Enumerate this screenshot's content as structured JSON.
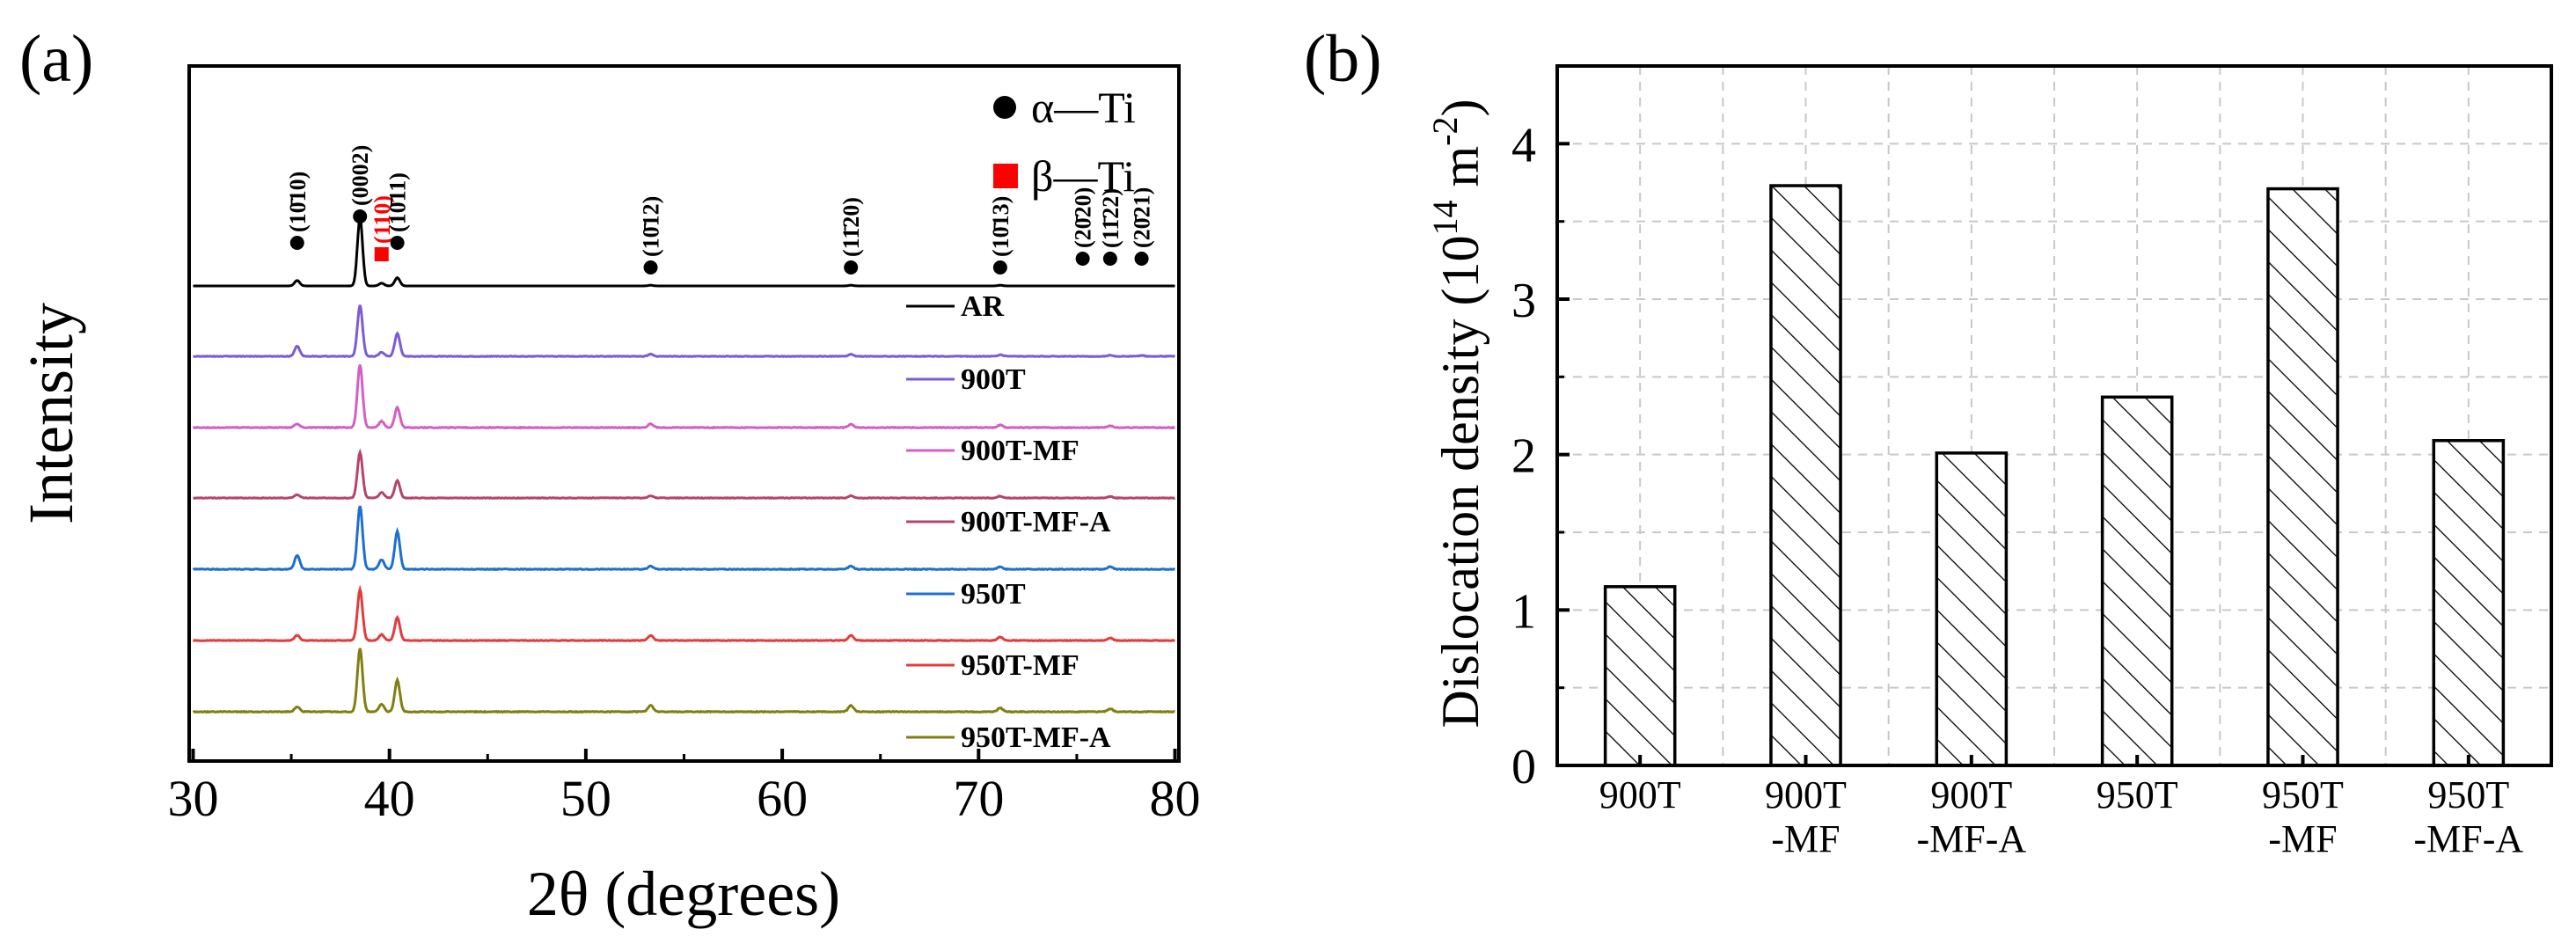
{
  "figure": {
    "panel_a_label": "(a)",
    "panel_b_label": "(b)"
  },
  "colors": {
    "axis": "#000000",
    "grid": "#c8c8c8",
    "marker_alpha": "#000000",
    "marker_beta": "#ff0000",
    "beta_label": "#ff0000"
  },
  "chart_data": [
    {
      "panel": "(a)",
      "type": "line",
      "title": "",
      "xlabel": "2θ (degrees)",
      "ylabel": "Intensity",
      "xlim": [
        29.8,
        80.2
      ],
      "xticks": [
        30,
        40,
        50,
        60,
        70,
        80
      ],
      "phase_legend": [
        {
          "symbol": "circle",
          "label": "α—Ti",
          "color": "#000000"
        },
        {
          "symbol": "square",
          "label": "β—Ti",
          "color": "#ff0000"
        }
      ],
      "reflections": [
        {
          "phase": "alpha",
          "label": "(10̄10)",
          "two_theta": 35.3
        },
        {
          "phase": "alpha",
          "label": "(0002)",
          "two_theta": 38.5
        },
        {
          "phase": "beta",
          "label": "(110)",
          "two_theta": 39.6
        },
        {
          "phase": "alpha",
          "label": "(10̄11)",
          "two_theta": 40.4
        },
        {
          "phase": "alpha",
          "label": "(10̄12)",
          "two_theta": 53.3
        },
        {
          "phase": "alpha",
          "label": "(11̄20)",
          "two_theta": 63.5
        },
        {
          "phase": "alpha",
          "label": "(10̄13)",
          "two_theta": 71.1
        },
        {
          "phase": "alpha",
          "label": "(20̄20)",
          "two_theta": 75.3
        },
        {
          "phase": "alpha",
          "label": "(11̄22)",
          "two_theta": 76.7
        },
        {
          "phase": "alpha",
          "label": "(20̄21)",
          "two_theta": 78.3
        }
      ],
      "series": [
        {
          "name": "AR",
          "color": "#000000",
          "peaks": [
            [
              35.3,
              0.08
            ],
            [
              38.5,
              1.0
            ],
            [
              39.6,
              0.04
            ],
            [
              40.4,
              0.12
            ],
            [
              53.3,
              0.01
            ],
            [
              63.5,
              0.01
            ],
            [
              71.1,
              0.01
            ]
          ]
        },
        {
          "name": "900T",
          "color": "#7b5cd6",
          "peaks": [
            [
              35.3,
              0.2
            ],
            [
              38.5,
              1.0
            ],
            [
              39.6,
              0.08
            ],
            [
              40.4,
              0.45
            ],
            [
              53.3,
              0.04
            ],
            [
              63.5,
              0.04
            ],
            [
              71.1,
              0.03
            ],
            [
              76.7,
              0.02
            ],
            [
              78.3,
              0.02
            ]
          ]
        },
        {
          "name": "900T-MF",
          "color": "#d45fc4",
          "peaks": [
            [
              35.3,
              0.06
            ],
            [
              38.5,
              1.0
            ],
            [
              39.6,
              0.1
            ],
            [
              40.4,
              0.32
            ],
            [
              53.3,
              0.06
            ],
            [
              63.5,
              0.05
            ],
            [
              71.1,
              0.04
            ],
            [
              76.7,
              0.03
            ]
          ]
        },
        {
          "name": "900T-MF-A",
          "color": "#b5456a",
          "peaks": [
            [
              35.3,
              0.07
            ],
            [
              38.5,
              1.0
            ],
            [
              39.6,
              0.12
            ],
            [
              40.4,
              0.38
            ],
            [
              53.3,
              0.05
            ],
            [
              63.5,
              0.05
            ],
            [
              71.1,
              0.04
            ],
            [
              76.7,
              0.03
            ]
          ]
        },
        {
          "name": "950T",
          "color": "#1d6fd1",
          "peaks": [
            [
              35.3,
              0.22
            ],
            [
              38.5,
              1.0
            ],
            [
              39.6,
              0.15
            ],
            [
              40.4,
              0.6
            ],
            [
              53.3,
              0.05
            ],
            [
              63.5,
              0.05
            ],
            [
              71.1,
              0.04
            ],
            [
              76.7,
              0.04
            ]
          ]
        },
        {
          "name": "950T-MF",
          "color": "#e23c3c",
          "peaks": [
            [
              35.3,
              0.1
            ],
            [
              38.5,
              1.0
            ],
            [
              39.6,
              0.12
            ],
            [
              40.4,
              0.45
            ],
            [
              53.3,
              0.1
            ],
            [
              63.5,
              0.1
            ],
            [
              71.1,
              0.07
            ],
            [
              76.7,
              0.05
            ]
          ]
        },
        {
          "name": "950T-MF-A",
          "color": "#7f7f12",
          "peaks": [
            [
              35.3,
              0.08
            ],
            [
              38.5,
              1.0
            ],
            [
              39.6,
              0.12
            ],
            [
              40.4,
              0.5
            ],
            [
              53.3,
              0.1
            ],
            [
              63.5,
              0.1
            ],
            [
              71.1,
              0.06
            ],
            [
              76.7,
              0.05
            ]
          ]
        }
      ],
      "legend_position": "right"
    },
    {
      "panel": "(b)",
      "type": "bar",
      "title": "",
      "xlabel": "",
      "ylabel": "Dislocation density (10",
      "ylabel_sup1": "14",
      "ylabel_mid": " m",
      "ylabel_sup2": "-2",
      "ylabel_end": ")",
      "ylim": [
        0,
        4.5
      ],
      "yticks": [
        0,
        1,
        2,
        3,
        4
      ],
      "grid": true,
      "categories": [
        [
          "900T"
        ],
        [
          "900T",
          "-MF"
        ],
        [
          "900T",
          "-MF-A"
        ],
        [
          "950T"
        ],
        [
          "950T",
          "-MF"
        ],
        [
          "950T",
          "-MF-A"
        ]
      ],
      "values": [
        1.15,
        3.73,
        2.01,
        2.37,
        3.71,
        2.09
      ],
      "bar_fill": "hatched"
    }
  ]
}
